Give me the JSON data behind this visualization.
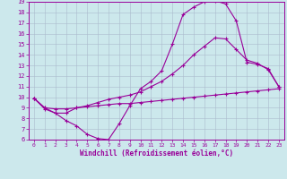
{
  "xlabel": "Windchill (Refroidissement éolien,°C)",
  "xlim": [
    -0.5,
    23.5
  ],
  "ylim": [
    6,
    19
  ],
  "xticks": [
    0,
    1,
    2,
    3,
    4,
    5,
    6,
    7,
    8,
    9,
    10,
    11,
    12,
    13,
    14,
    15,
    16,
    17,
    18,
    19,
    20,
    21,
    22,
    23
  ],
  "yticks": [
    6,
    7,
    8,
    9,
    10,
    11,
    12,
    13,
    14,
    15,
    16,
    17,
    18,
    19
  ],
  "bg_color": "#cce8ec",
  "line_color": "#990099",
  "grid_color": "#aabbcc",
  "curves": [
    {
      "x": [
        0,
        1,
        2,
        3,
        4,
        5,
        6,
        7,
        8,
        9,
        10,
        11,
        12,
        13,
        14,
        15,
        16,
        17,
        18,
        19,
        20,
        21,
        22,
        23
      ],
      "y": [
        9.9,
        8.9,
        8.5,
        7.8,
        7.3,
        6.5,
        6.1,
        6.0,
        7.5,
        9.2,
        10.8,
        11.5,
        12.5,
        15.0,
        17.8,
        18.5,
        19.0,
        19.1,
        18.8,
        17.2,
        13.3,
        13.1,
        12.7,
        11.0
      ]
    },
    {
      "x": [
        0,
        1,
        2,
        3,
        4,
        5,
        6,
        7,
        8,
        9,
        10,
        11,
        12,
        13,
        14,
        15,
        16,
        17,
        18,
        19,
        20,
        21,
        22,
        23
      ],
      "y": [
        9.9,
        9.0,
        8.5,
        8.5,
        9.0,
        9.2,
        9.5,
        9.8,
        10.0,
        10.2,
        10.5,
        11.0,
        11.5,
        12.2,
        13.0,
        14.0,
        14.8,
        15.6,
        15.5,
        14.5,
        13.5,
        13.2,
        12.6,
        11.0
      ]
    },
    {
      "x": [
        0,
        1,
        2,
        3,
        4,
        5,
        6,
        7,
        8,
        9,
        10,
        11,
        12,
        13,
        14,
        15,
        16,
        17,
        18,
        19,
        20,
        21,
        22,
        23
      ],
      "y": [
        9.9,
        9.0,
        8.9,
        8.9,
        9.0,
        9.1,
        9.2,
        9.3,
        9.4,
        9.4,
        9.5,
        9.6,
        9.7,
        9.8,
        9.9,
        10.0,
        10.1,
        10.2,
        10.3,
        10.4,
        10.5,
        10.6,
        10.7,
        10.8
      ]
    }
  ]
}
